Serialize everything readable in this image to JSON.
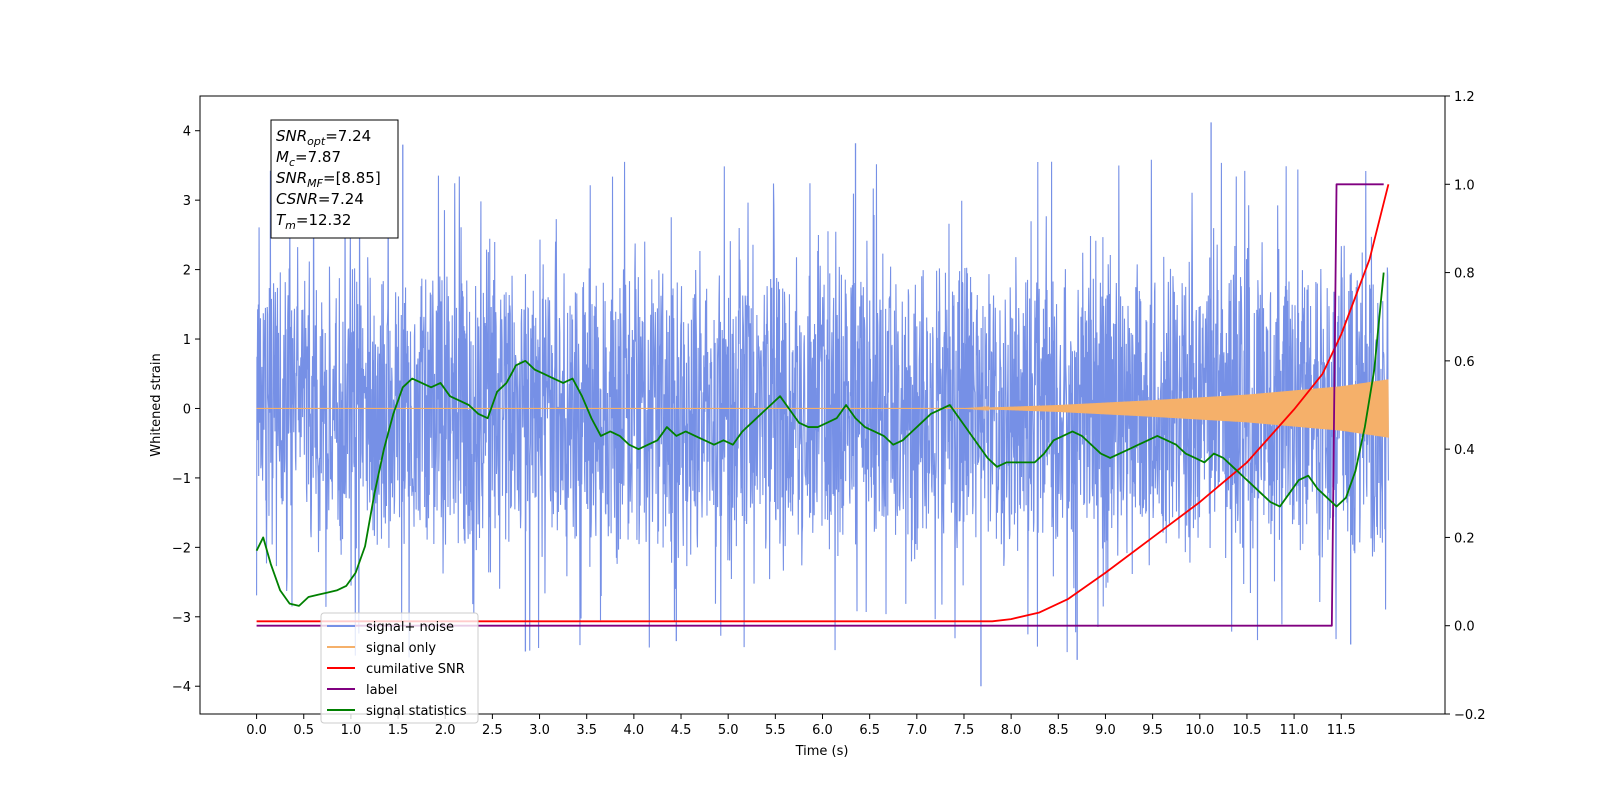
{
  "chart_data": {
    "type": "line",
    "xlabel": "Time (s)",
    "ylabel_left": "Whitened strain",
    "ylabel_right": "",
    "xlim": [
      -0.6,
      12.6
    ],
    "ylim_left": [
      -4.4,
      4.5
    ],
    "ylim_right": [
      -0.2,
      1.2
    ],
    "grid": false,
    "legend_position": "lower-left",
    "x_ticks": [
      "0.0",
      "0.5",
      "1.0",
      "1.5",
      "2.0",
      "2.5",
      "3.0",
      "3.5",
      "4.0",
      "4.5",
      "5.0",
      "5.5",
      "6.0",
      "6.5",
      "7.0",
      "7.5",
      "8.0",
      "8.5",
      "9.0",
      "9.5",
      "10.0",
      "10.5",
      "11.0",
      "11.5"
    ],
    "y_ticks_left": [
      "−4",
      "−3",
      "−2",
      "−1",
      "0",
      "1",
      "2",
      "3",
      "4"
    ],
    "y_ticks_right": [
      "−0.2",
      "0.0",
      "0.2",
      "0.4",
      "0.6",
      "0.8",
      "1.0",
      "1.2"
    ],
    "annotation": [
      {
        "base": "SNR",
        "sub": "opt",
        "rest": "=7.24"
      },
      {
        "base": "M",
        "sub": "c",
        "rest": "=7.87"
      },
      {
        "base": "SNR",
        "sub": "MF",
        "rest": "=[8.85]"
      },
      {
        "base": "CSNR",
        "sub": "",
        "rest": "=7.24"
      },
      {
        "base": "T",
        "sub": "m",
        "rest": "=12.32"
      }
    ],
    "series": [
      {
        "name": "signal+ noise",
        "axis": "left",
        "color": "#7690e6",
        "x_range": [
          0.0,
          12.0
        ],
        "noise_amplitude": 2.0,
        "peak_max": 4.12,
        "peak_min": -4.0
      },
      {
        "name": "signal only",
        "axis": "left",
        "color": "#f5b06a",
        "x_range": [
          0.0,
          12.0
        ],
        "envelope_x": [
          0.0,
          7.5,
          8.5,
          9.5,
          10.5,
          11.0,
          11.5,
          12.0
        ],
        "envelope_y": [
          0.0,
          0.0,
          0.05,
          0.12,
          0.2,
          0.26,
          0.32,
          0.42
        ]
      },
      {
        "name": "cumilative SNR",
        "axis": "right",
        "color": "#ff0000",
        "x": [
          0.0,
          7.5,
          7.8,
          8.0,
          8.3,
          8.6,
          9.0,
          9.5,
          10.0,
          10.5,
          11.0,
          11.3,
          11.5,
          11.8,
          12.0
        ],
        "y": [
          0.01,
          0.01,
          0.01,
          0.015,
          0.03,
          0.06,
          0.12,
          0.2,
          0.28,
          0.37,
          0.49,
          0.57,
          0.66,
          0.83,
          1.0
        ]
      },
      {
        "name": "label",
        "axis": "right",
        "color": "#800080",
        "x": [
          0.0,
          11.4,
          11.45,
          11.95
        ],
        "y": [
          0.0,
          0.0,
          1.0,
          1.0
        ]
      },
      {
        "name": "signal statistics",
        "axis": "right",
        "color": "#008000",
        "x": [
          0.0,
          0.07,
          0.15,
          0.25,
          0.35,
          0.45,
          0.55,
          0.65,
          0.75,
          0.85,
          0.95,
          1.05,
          1.15,
          1.25,
          1.35,
          1.45,
          1.55,
          1.65,
          1.75,
          1.85,
          1.95,
          2.05,
          2.15,
          2.25,
          2.35,
          2.45,
          2.55,
          2.65,
          2.75,
          2.85,
          2.95,
          3.05,
          3.15,
          3.25,
          3.35,
          3.45,
          3.55,
          3.65,
          3.75,
          3.85,
          3.95,
          4.05,
          4.15,
          4.25,
          4.35,
          4.45,
          4.55,
          4.65,
          4.75,
          4.85,
          4.95,
          5.05,
          5.15,
          5.25,
          5.35,
          5.45,
          5.55,
          5.65,
          5.75,
          5.85,
          5.95,
          6.05,
          6.15,
          6.25,
          6.35,
          6.45,
          6.55,
          6.65,
          6.75,
          6.85,
          6.95,
          7.05,
          7.15,
          7.25,
          7.35,
          7.45,
          7.55,
          7.65,
          7.75,
          7.85,
          7.95,
          8.05,
          8.15,
          8.25,
          8.35,
          8.45,
          8.55,
          8.65,
          8.75,
          8.85,
          8.95,
          9.05,
          9.15,
          9.25,
          9.35,
          9.45,
          9.55,
          9.65,
          9.75,
          9.85,
          9.95,
          10.05,
          10.15,
          10.25,
          10.35,
          10.45,
          10.55,
          10.65,
          10.75,
          10.85,
          10.95,
          11.05,
          11.15,
          11.25,
          11.35,
          11.45,
          11.55,
          11.65,
          11.75,
          11.85,
          11.95
        ],
        "y": [
          0.17,
          0.2,
          0.14,
          0.08,
          0.05,
          0.045,
          0.065,
          0.07,
          0.075,
          0.08,
          0.09,
          0.12,
          0.18,
          0.3,
          0.4,
          0.48,
          0.54,
          0.56,
          0.55,
          0.54,
          0.55,
          0.52,
          0.51,
          0.5,
          0.48,
          0.47,
          0.53,
          0.55,
          0.59,
          0.6,
          0.58,
          0.57,
          0.56,
          0.55,
          0.56,
          0.52,
          0.47,
          0.43,
          0.44,
          0.43,
          0.41,
          0.4,
          0.41,
          0.42,
          0.45,
          0.43,
          0.44,
          0.43,
          0.42,
          0.41,
          0.42,
          0.41,
          0.44,
          0.46,
          0.48,
          0.5,
          0.52,
          0.49,
          0.46,
          0.45,
          0.45,
          0.46,
          0.47,
          0.5,
          0.47,
          0.45,
          0.44,
          0.43,
          0.41,
          0.42,
          0.44,
          0.46,
          0.48,
          0.49,
          0.5,
          0.47,
          0.44,
          0.41,
          0.38,
          0.36,
          0.37,
          0.37,
          0.37,
          0.37,
          0.39,
          0.42,
          0.43,
          0.44,
          0.43,
          0.41,
          0.39,
          0.38,
          0.39,
          0.4,
          0.41,
          0.42,
          0.43,
          0.42,
          0.41,
          0.39,
          0.38,
          0.37,
          0.39,
          0.38,
          0.36,
          0.34,
          0.32,
          0.3,
          0.28,
          0.27,
          0.3,
          0.33,
          0.34,
          0.31,
          0.29,
          0.27,
          0.29,
          0.35,
          0.45,
          0.58,
          0.8
        ]
      }
    ],
    "legend": [
      {
        "label": "signal+ noise",
        "color": "#7690e6"
      },
      {
        "label": "signal only",
        "color": "#f5b06a"
      },
      {
        "label": "cumilative SNR",
        "color": "#ff0000"
      },
      {
        "label": "label",
        "color": "#800080"
      },
      {
        "label": "signal statistics",
        "color": "#008000"
      }
    ]
  }
}
